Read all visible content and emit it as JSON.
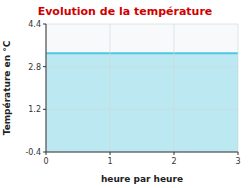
{
  "chart_data": {
    "type": "area",
    "title": "Evolution de la température",
    "xlabel": "heure par heure",
    "ylabel": "Température en °C",
    "x": [
      0,
      3
    ],
    "values": [
      3.3,
      3.3
    ],
    "color": "#4dc8e0",
    "xlim": [
      0,
      3
    ],
    "ylim": [
      -0.4,
      4.4
    ],
    "xticks": [
      0,
      1,
      2,
      3
    ],
    "yticks": [
      -0.4,
      1.2,
      2.8,
      4.4
    ],
    "grid": true
  }
}
